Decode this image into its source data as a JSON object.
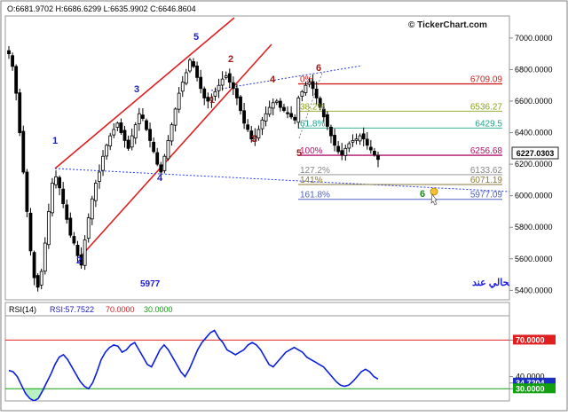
{
  "header": {
    "ohlc": "O:6681.9702  H:6686.6299  L:6635.9902  C:6646.8604",
    "brand": "© TickerChart.com"
  },
  "annotation": {
    "arabic_text": "المؤشر العام للسوق السعودي المتوقع ان ينهي التصحيح الحالي عند",
    "target": "5977"
  },
  "colors": {
    "candle": "#000000",
    "channel": "#e02020",
    "trend_dashed": "#2a3bd6",
    "wave_blue": "#2020c0",
    "wave_red": "#a01818",
    "fib_red": "#d02020",
    "fib_green": "#8aa31e",
    "fib_teal": "#1fa58a",
    "fib_magenta": "#b0106a",
    "fib_gray": "#888888",
    "fib_olive": "#8a7a3a",
    "fib_blue": "#5060c0",
    "rsi_line": "#0a1ee0",
    "rsi_upper": "#e02020",
    "rsi_lower": "#10a010",
    "rsi_fill": "#b8f0c0"
  },
  "chart_data": [
    {
      "type": "candlestick",
      "ylim": [
        5340,
        7140
      ],
      "y_ticks": [
        "7000.0000",
        "6800.0000",
        "6600.0000",
        "6400.0000",
        "6200.0000",
        "6000.0000",
        "5800.0000",
        "5600.0000",
        "5400.0000"
      ],
      "last_price": "6227.0303",
      "closes": [
        6900,
        6820,
        6650,
        6400,
        6150,
        5900,
        5650,
        5480,
        5420,
        5520,
        5700,
        5900,
        6080,
        6120,
        6050,
        5950,
        5850,
        5750,
        5700,
        5620,
        5560,
        5720,
        5860,
        5980,
        6080,
        6150,
        6250,
        6320,
        6380,
        6420,
        6460,
        6400,
        6350,
        6300,
        6380,
        6450,
        6520,
        6490,
        6420,
        6350,
        6280,
        6200,
        6150,
        6250,
        6350,
        6450,
        6550,
        6650,
        6720,
        6780,
        6860,
        6820,
        6750,
        6680,
        6620,
        6600,
        6620,
        6660,
        6700,
        6740,
        6760,
        6720,
        6680,
        6620,
        6540,
        6460,
        6420,
        6360,
        6380,
        6420,
        6480,
        6520,
        6560,
        6590,
        6600,
        6560,
        6540,
        6520,
        6500,
        6480,
        6620,
        6660,
        6700,
        6720,
        6680,
        6620,
        6560,
        6500,
        6440,
        6380,
        6320,
        6280,
        6260,
        6300,
        6330,
        6350,
        6360,
        6380,
        6360,
        6320,
        6290,
        6260,
        6230
      ],
      "fib_levels": [
        {
          "pct": "0%",
          "value": "6709.09",
          "price": 6709.09,
          "color": "#d02020"
        },
        {
          "pct": "38.2%",
          "value": "6536.27",
          "price": 6536.27,
          "color": "#8aa31e"
        },
        {
          "pct": "61.8%",
          "value": "6429.5",
          "price": 6429.5,
          "color": "#1fa58a"
        },
        {
          "pct": "100%",
          "value": "6256.68",
          "price": 6256.68,
          "color": "#b0106a"
        },
        {
          "pct": "127.2%",
          "value": "6133.62",
          "price": 6133.62,
          "color": "#888888"
        },
        {
          "pct": "141%",
          "value": "6071.19",
          "price": 6071.19,
          "color": "#8a7a3a"
        },
        {
          "pct": "161.8%",
          "value": "5977.09",
          "price": 5977.09,
          "color": "#5060c0"
        }
      ],
      "waves": [
        {
          "label": "1",
          "color": "blue"
        },
        {
          "label": "2",
          "color": "blue"
        },
        {
          "label": "3",
          "color": "blue"
        },
        {
          "label": "4",
          "color": "blue"
        },
        {
          "label": "5",
          "color": "blue"
        },
        {
          "label": "1",
          "color": "red"
        },
        {
          "label": "2",
          "color": "red"
        },
        {
          "label": "3",
          "color": "red"
        },
        {
          "label": "4",
          "color": "red"
        },
        {
          "label": "5",
          "color": "red"
        },
        {
          "label": "6",
          "color": "red"
        },
        {
          "label": "6",
          "color": "green"
        }
      ]
    },
    {
      "type": "line",
      "title": "RSI(14)",
      "rsi_readout": "RSI:57.7522",
      "upper_label": "70.0000",
      "lower_label": "30.0000",
      "ylim": [
        20,
        90
      ],
      "upper": 70,
      "lower": 30,
      "right_labels": [
        "70.0000",
        "40.0000",
        "34.7204",
        "30.0000"
      ],
      "values": [
        45,
        44,
        40,
        33,
        26,
        22,
        20,
        22,
        28,
        35,
        42,
        50,
        56,
        58,
        54,
        48,
        42,
        36,
        32,
        30,
        35,
        44,
        54,
        60,
        64,
        66,
        65,
        60,
        62,
        66,
        68,
        62,
        56,
        50,
        48,
        55,
        62,
        66,
        62,
        56,
        50,
        44,
        40,
        46,
        54,
        62,
        68,
        72,
        76,
        78,
        72,
        68,
        62,
        60,
        58,
        60,
        62,
        66,
        68,
        66,
        62,
        56,
        50,
        48,
        52,
        56,
        60,
        62,
        64,
        62,
        60,
        56,
        54,
        52,
        50,
        48,
        44,
        40,
        36,
        33,
        32,
        33,
        36,
        40,
        44,
        46,
        44,
        40,
        38
      ]
    }
  ]
}
